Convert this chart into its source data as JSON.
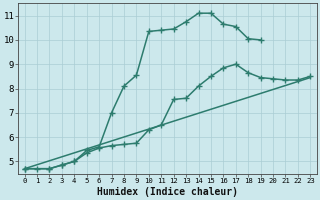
{
  "line1_x": [
    0,
    1,
    2,
    3,
    4,
    5,
    6,
    7,
    8,
    9,
    10,
    11,
    12,
    13,
    14,
    15,
    16,
    17,
    18,
    19
  ],
  "line1_y": [
    4.7,
    4.7,
    4.7,
    4.85,
    5.0,
    5.45,
    5.6,
    7.0,
    8.1,
    8.55,
    10.35,
    10.4,
    10.45,
    10.75,
    11.1,
    11.1,
    10.65,
    10.55,
    10.05,
    10.0
  ],
  "line2_x": [
    0,
    2,
    3,
    4,
    5,
    6,
    7,
    8,
    9,
    10,
    11,
    12,
    13,
    14,
    15,
    16,
    17,
    18,
    19,
    20,
    21,
    22,
    23
  ],
  "line2_y": [
    4.7,
    4.7,
    4.85,
    5.0,
    5.35,
    5.55,
    5.65,
    5.7,
    5.75,
    6.3,
    6.5,
    7.55,
    7.6,
    8.1,
    8.5,
    8.85,
    9.0,
    8.65,
    8.45,
    8.4,
    8.35,
    8.35,
    8.5
  ],
  "line3_x": [
    0,
    23
  ],
  "line3_y": [
    4.7,
    8.45
  ],
  "color": "#2d7c6e",
  "bg_color": "#cce8ec",
  "grid_color": "#aacdd4",
  "xlabel": "Humidex (Indice chaleur)",
  "ylim": [
    4.5,
    11.5
  ],
  "xlim": [
    -0.5,
    23.5
  ],
  "yticks": [
    5,
    6,
    7,
    8,
    9,
    10,
    11
  ],
  "xticks": [
    0,
    1,
    2,
    3,
    4,
    5,
    6,
    7,
    8,
    9,
    10,
    11,
    12,
    13,
    14,
    15,
    16,
    17,
    18,
    19,
    20,
    21,
    22,
    23
  ],
  "marker": "+",
  "markersize": 4.5,
  "linewidth": 1.1
}
